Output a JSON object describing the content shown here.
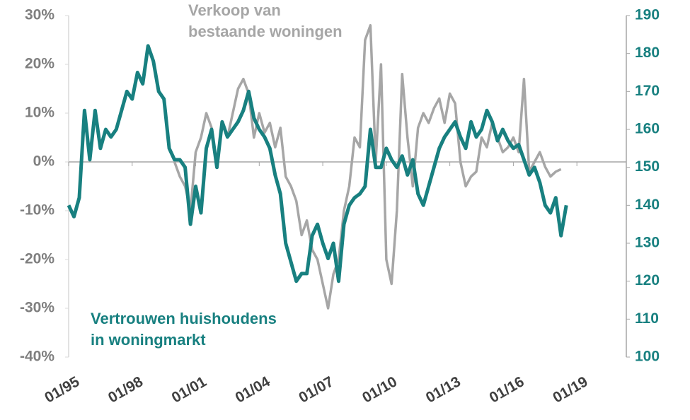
{
  "chart_data": {
    "type": "line",
    "x": [
      "1995-01",
      "1995-04",
      "1995-07",
      "1995-10",
      "1996-01",
      "1996-04",
      "1996-07",
      "1996-10",
      "1997-01",
      "1997-04",
      "1997-07",
      "1997-10",
      "1998-01",
      "1998-04",
      "1998-07",
      "1998-10",
      "1999-01",
      "1999-04",
      "1999-07",
      "1999-10",
      "2000-01",
      "2000-04",
      "2000-07",
      "2000-10",
      "2001-01",
      "2001-04",
      "2001-07",
      "2001-10",
      "2002-01",
      "2002-04",
      "2002-07",
      "2002-10",
      "2003-01",
      "2003-04",
      "2003-07",
      "2003-10",
      "2004-01",
      "2004-04",
      "2004-07",
      "2004-10",
      "2005-01",
      "2005-04",
      "2005-07",
      "2005-10",
      "2006-01",
      "2006-04",
      "2006-07",
      "2006-10",
      "2007-01",
      "2007-04",
      "2007-07",
      "2007-10",
      "2008-01",
      "2008-04",
      "2008-07",
      "2008-10",
      "2009-01",
      "2009-04",
      "2009-07",
      "2009-10",
      "2010-01",
      "2010-04",
      "2010-07",
      "2010-10",
      "2011-01",
      "2011-04",
      "2011-07",
      "2011-10",
      "2012-01",
      "2012-04",
      "2012-07",
      "2012-10",
      "2013-01",
      "2013-04",
      "2013-07",
      "2013-10",
      "2014-01",
      "2014-04",
      "2014-07",
      "2014-10",
      "2015-01",
      "2015-04",
      "2015-07",
      "2015-10",
      "2016-01",
      "2016-04",
      "2016-07",
      "2016-10",
      "2017-01",
      "2017-04",
      "2017-07",
      "2017-10",
      "2018-01",
      "2018-04",
      "2018-07"
    ],
    "xlim": [
      "1995-01",
      "2021-05"
    ],
    "xticks": [
      {
        "value": "1995-01",
        "label": "01/95"
      },
      {
        "value": "1998-01",
        "label": "01/98"
      },
      {
        "value": "2001-01",
        "label": "01/01"
      },
      {
        "value": "2004-01",
        "label": "01/04"
      },
      {
        "value": "2007-01",
        "label": "01/07"
      },
      {
        "value": "2010-01",
        "label": "01/10"
      },
      {
        "value": "2013-01",
        "label": "01/13"
      },
      {
        "value": "2016-01",
        "label": "01/16"
      },
      {
        "value": "2019-01",
        "label": "01/19"
      }
    ],
    "ylim": [
      -40,
      30
    ],
    "yticks": [
      {
        "value": -40,
        "label": "-40%"
      },
      {
        "value": -30,
        "label": "-30%"
      },
      {
        "value": -20,
        "label": "-20%"
      },
      {
        "value": -10,
        "label": "-10%"
      },
      {
        "value": 0,
        "label": "0%"
      },
      {
        "value": 10,
        "label": "10%"
      },
      {
        "value": 20,
        "label": "20%"
      },
      {
        "value": 30,
        "label": "30%"
      }
    ],
    "y2lim": [
      100,
      190
    ],
    "y2ticks": [
      100,
      110,
      120,
      130,
      140,
      150,
      160,
      170,
      180,
      190
    ],
    "series": [
      {
        "name": [
          "Verkoop van",
          "bestaande woningen"
        ],
        "color": "#a6a6a6",
        "axis": "y",
        "values": [
          null,
          null,
          null,
          null,
          null,
          null,
          null,
          null,
          null,
          null,
          null,
          null,
          null,
          null,
          null,
          null,
          null,
          null,
          null,
          null,
          0,
          -3,
          -5,
          -10,
          2,
          5,
          10,
          7,
          -1,
          8,
          5,
          10,
          15,
          17,
          14,
          5,
          10,
          6,
          8,
          3,
          7,
          -3,
          -5,
          -8,
          -15,
          -12,
          -18,
          -20,
          -25,
          -30,
          -23,
          -20,
          -10,
          -5,
          5,
          3,
          25,
          28,
          0,
          20,
          -20,
          -25,
          -10,
          18,
          5,
          -5,
          7,
          10,
          8,
          11,
          13,
          8,
          14,
          12,
          0,
          -5,
          -3,
          -2,
          5,
          3,
          8,
          5,
          2,
          3,
          5,
          2,
          17,
          -2,
          0,
          2,
          -1,
          -3,
          -2,
          -1.5,
          null
        ]
      },
      {
        "name": [
          "Vertrouwen huishoudens",
          "in woningmarkt"
        ],
        "color": "#188080",
        "axis": "y2",
        "values": [
          140,
          137,
          142,
          165,
          152,
          165,
          155,
          160,
          158,
          160,
          165,
          170,
          168,
          175,
          172,
          182,
          178,
          170,
          168,
          155,
          152,
          152,
          150,
          135,
          145,
          138,
          155,
          160,
          150,
          162,
          158,
          160,
          162,
          165,
          170,
          163,
          160,
          158,
          155,
          148,
          143,
          130,
          125,
          120,
          122,
          122,
          132,
          135,
          130,
          126,
          130,
          120,
          135,
          140,
          142,
          143,
          145,
          160,
          150,
          150,
          155,
          152,
          150,
          153,
          148,
          152,
          143,
          140,
          145,
          150,
          155,
          158,
          160,
          162,
          158,
          155,
          162,
          158,
          160,
          165,
          162,
          157,
          160,
          157,
          155,
          156,
          152,
          148,
          150,
          146,
          140,
          138,
          142,
          132,
          140
        ]
      }
    ]
  }
}
